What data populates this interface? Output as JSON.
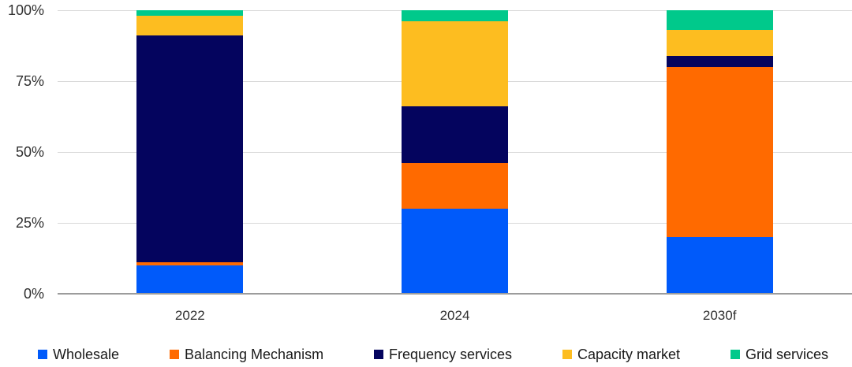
{
  "chart_data": {
    "type": "bar",
    "variant": "stacked-100-percent",
    "title": "",
    "xlabel": "",
    "ylabel": "",
    "unit": "%",
    "categories": [
      "2022",
      "2024",
      "2030f"
    ],
    "series": [
      {
        "name": "Wholesale",
        "color": "#005AFA",
        "values": [
          10,
          30,
          20
        ]
      },
      {
        "name": "Balancing Mechanism",
        "color": "#FF6A00",
        "values": [
          1,
          16,
          60
        ]
      },
      {
        "name": "Frequency services",
        "color": "#04045E",
        "values": [
          80,
          20,
          4
        ]
      },
      {
        "name": "Capacity market",
        "color": "#FDBD20",
        "values": [
          7,
          30,
          9
        ]
      },
      {
        "name": "Grid services",
        "color": "#00C98B",
        "values": [
          2,
          4,
          7
        ]
      }
    ],
    "y_axis": {
      "min": 0,
      "max": 100,
      "tick_values": [
        0,
        25,
        50,
        75,
        100
      ],
      "tick_labels": [
        "0%",
        "25%",
        "50%",
        "75%",
        "100%"
      ]
    },
    "grid": true,
    "legend_position": "bottom"
  },
  "style_colors": {
    "gridline": "#d9d9d9",
    "axis_line": "#9c9c9c",
    "axis_text": "#303030",
    "legend_text": "#1a1a1a",
    "background": "#ffffff"
  }
}
